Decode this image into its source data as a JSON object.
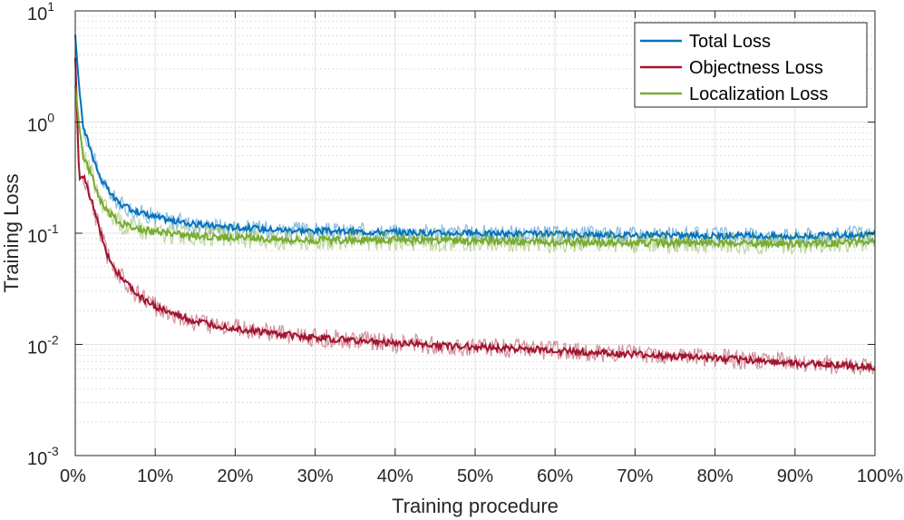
{
  "chart_data": {
    "type": "line",
    "title": "",
    "xlabel": "Training procedure",
    "ylabel": "Training Loss",
    "yscale": "log",
    "xlim": [
      0,
      100
    ],
    "ylim": [
      0.001,
      10
    ],
    "grid": true,
    "legend_position": "top-right",
    "x_ticks": [
      {
        "value": 0,
        "label": "0%"
      },
      {
        "value": 10,
        "label": "10%"
      },
      {
        "value": 20,
        "label": "20%"
      },
      {
        "value": 30,
        "label": "30%"
      },
      {
        "value": 40,
        "label": "40%"
      },
      {
        "value": 50,
        "label": "50%"
      },
      {
        "value": 60,
        "label": "60%"
      },
      {
        "value": 70,
        "label": "70%"
      },
      {
        "value": 80,
        "label": "80%"
      },
      {
        "value": 90,
        "label": "90%"
      },
      {
        "value": 100,
        "label": "100%"
      }
    ],
    "y_ticks": [
      {
        "value": 10,
        "base": "10",
        "exp": "1"
      },
      {
        "value": 1,
        "base": "10",
        "exp": "0"
      },
      {
        "value": 0.1,
        "base": "10",
        "exp": "-1"
      },
      {
        "value": 0.01,
        "base": "10",
        "exp": "-2"
      },
      {
        "value": 0.001,
        "base": "10",
        "exp": "-3"
      }
    ],
    "x": [
      0,
      0.5,
      1,
      2,
      3,
      4,
      5,
      6,
      8,
      10,
      12,
      15,
      20,
      25,
      30,
      40,
      50,
      60,
      70,
      80,
      90,
      100
    ],
    "series": [
      {
        "name": "Total Loss",
        "color": "#0072BD",
        "noise": 0.18,
        "values": [
          6.0,
          2.0,
          0.9,
          0.55,
          0.33,
          0.25,
          0.2,
          0.175,
          0.155,
          0.14,
          0.13,
          0.12,
          0.113,
          0.108,
          0.105,
          0.102,
          0.1,
          0.098,
          0.097,
          0.095,
          0.094,
          0.098
        ]
      },
      {
        "name": "Objectness Loss",
        "color": "#A2142F",
        "noise": 0.2,
        "values": [
          3.8,
          0.3,
          0.33,
          0.2,
          0.11,
          0.065,
          0.048,
          0.038,
          0.027,
          0.022,
          0.019,
          0.016,
          0.014,
          0.0125,
          0.0115,
          0.0103,
          0.0095,
          0.0088,
          0.0081,
          0.0075,
          0.0068,
          0.0063
        ]
      },
      {
        "name": "Localization Loss",
        "color": "#77AC30",
        "noise": 0.22,
        "values": [
          2.1,
          0.9,
          0.5,
          0.34,
          0.21,
          0.16,
          0.135,
          0.12,
          0.11,
          0.103,
          0.1,
          0.095,
          0.091,
          0.089,
          0.087,
          0.086,
          0.085,
          0.083,
          0.082,
          0.081,
          0.08,
          0.084
        ]
      }
    ]
  }
}
